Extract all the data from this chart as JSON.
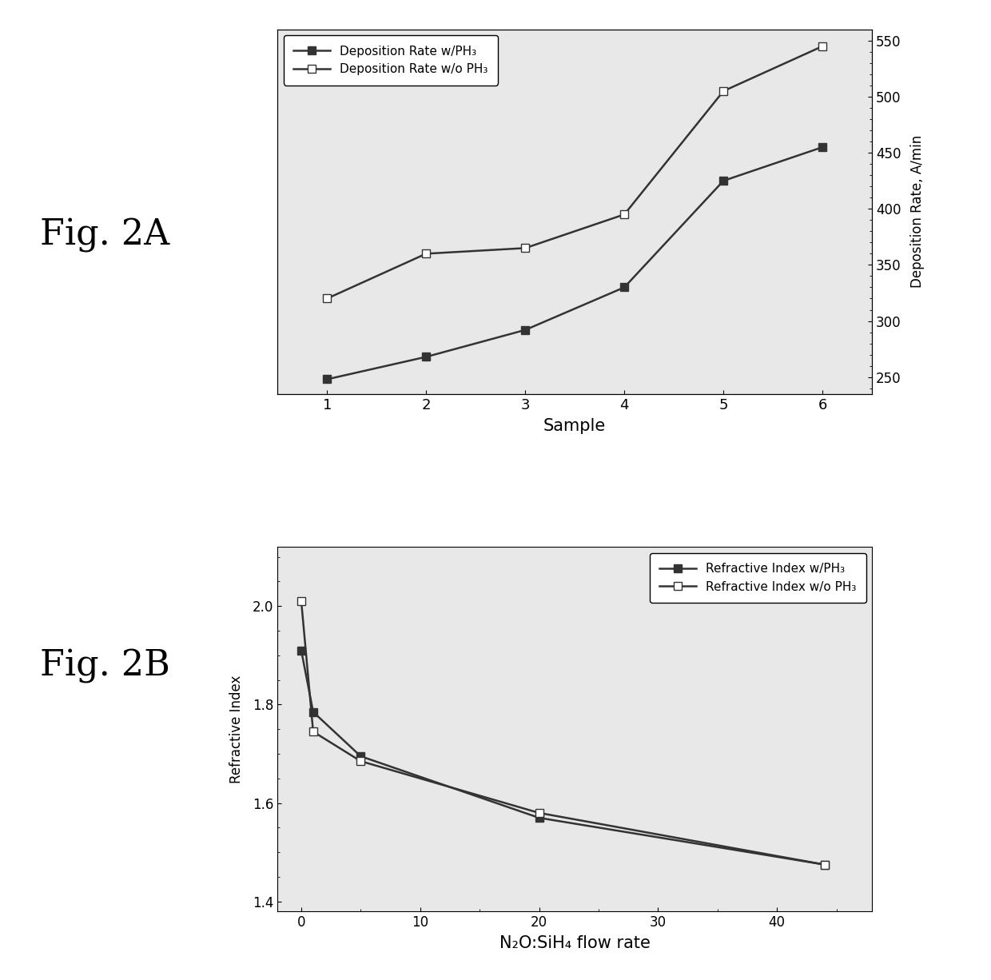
{
  "fig2a": {
    "x": [
      1,
      2,
      3,
      4,
      5,
      6
    ],
    "with_ph3": [
      248,
      268,
      292,
      330,
      425,
      455
    ],
    "without_ph3": [
      320,
      360,
      365,
      395,
      505,
      545
    ],
    "right_ylabel": "Deposition Rate, A/min",
    "xlabel": "Sample",
    "legend_with": "Deposition Rate w/PH₃",
    "legend_without": "Deposition Rate w/o PH₃",
    "ylim": [
      235,
      560
    ],
    "yticks": [
      250,
      300,
      350,
      400,
      450,
      500,
      550
    ],
    "xticks": [
      1,
      2,
      3,
      4,
      5,
      6
    ]
  },
  "fig2b": {
    "x": [
      0,
      1,
      5,
      20,
      44
    ],
    "with_ph3": [
      1.91,
      1.785,
      1.695,
      1.57,
      1.475
    ],
    "without_ph3": [
      2.01,
      1.745,
      1.685,
      1.58,
      1.475
    ],
    "ylabel": "Refractive Index",
    "xlabel": "N₂O:SiH₄ flow rate",
    "legend_with": "Refractive Index w/PH₃",
    "legend_without": "Refractive Index w/o PH₃",
    "ylim": [
      1.38,
      2.12
    ],
    "yticks": [
      1.4,
      1.6,
      1.8,
      2.0
    ],
    "xticks": [
      0,
      10,
      20,
      30,
      40
    ]
  },
  "label_2A": "Fig. 2A",
  "label_2B": "Fig. 2B",
  "line_color": "#333333",
  "bg_color": "#e8e8e8",
  "marker_filled": "s",
  "marker_open": "s",
  "markersize": 7,
  "linewidth": 1.8
}
